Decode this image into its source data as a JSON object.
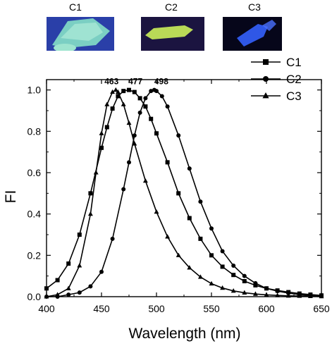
{
  "photos": [
    {
      "label": "C1",
      "color": "#7fd7c4"
    },
    {
      "label": "C2",
      "color": "#b9d957"
    },
    {
      "label": "C3",
      "color": "#2f57e6"
    }
  ],
  "chart_data": {
    "type": "line",
    "xlabel": "Wavelength (nm)",
    "ylabel": "FI",
    "xlim": [
      400,
      650
    ],
    "ylim": [
      0.0,
      1.05
    ],
    "xticks": [
      400,
      450,
      500,
      550,
      600,
      650
    ],
    "yticks": [
      0.0,
      0.2,
      0.4,
      0.6,
      0.8,
      1.0
    ],
    "grid": false,
    "legend_position": "top-right",
    "annotations": [
      {
        "text": "463",
        "x": 463,
        "y": 1.0
      },
      {
        "text": "477",
        "x": 477,
        "y": 1.0
      },
      {
        "text": "498",
        "x": 498,
        "y": 1.0
      }
    ],
    "series": [
      {
        "name": "C1",
        "marker": "square",
        "x": [
          400,
          410,
          420,
          430,
          440,
          450,
          455,
          460,
          465,
          470,
          475,
          480,
          485,
          490,
          495,
          500,
          510,
          520,
          530,
          540,
          550,
          560,
          570,
          580,
          590,
          600,
          610,
          620,
          630,
          640,
          650
        ],
        "y": [
          0.04,
          0.08,
          0.16,
          0.3,
          0.5,
          0.72,
          0.82,
          0.91,
          0.97,
          0.995,
          1.0,
          0.99,
          0.96,
          0.92,
          0.86,
          0.79,
          0.65,
          0.5,
          0.38,
          0.28,
          0.2,
          0.145,
          0.105,
          0.075,
          0.055,
          0.04,
          0.03,
          0.022,
          0.015,
          0.01,
          0.006
        ]
      },
      {
        "name": "C2",
        "marker": "circle",
        "x": [
          400,
          410,
          420,
          430,
          440,
          450,
          460,
          470,
          475,
          480,
          485,
          490,
          495,
          498,
          500,
          505,
          510,
          520,
          530,
          540,
          550,
          560,
          570,
          580,
          590,
          600,
          610,
          620,
          630,
          640,
          650
        ],
        "y": [
          0.0,
          0.0,
          0.01,
          0.02,
          0.05,
          0.12,
          0.28,
          0.52,
          0.65,
          0.78,
          0.89,
          0.96,
          0.995,
          1.0,
          0.995,
          0.97,
          0.92,
          0.78,
          0.62,
          0.46,
          0.33,
          0.22,
          0.15,
          0.1,
          0.065,
          0.04,
          0.027,
          0.017,
          0.01,
          0.006,
          0.003
        ]
      },
      {
        "name": "C3",
        "marker": "triangle",
        "x": [
          400,
          410,
          420,
          430,
          440,
          445,
          450,
          455,
          460,
          463,
          465,
          470,
          475,
          480,
          490,
          500,
          510,
          520,
          530,
          540,
          550,
          560,
          570,
          580,
          590,
          600,
          610,
          620,
          630,
          640,
          650
        ],
        "y": [
          0.0,
          0.01,
          0.04,
          0.15,
          0.4,
          0.6,
          0.79,
          0.93,
          0.99,
          1.0,
          0.99,
          0.93,
          0.84,
          0.74,
          0.56,
          0.41,
          0.29,
          0.2,
          0.14,
          0.095,
          0.063,
          0.042,
          0.028,
          0.019,
          0.013,
          0.009,
          0.006,
          0.004,
          0.003,
          0.002,
          0.001
        ]
      }
    ]
  }
}
